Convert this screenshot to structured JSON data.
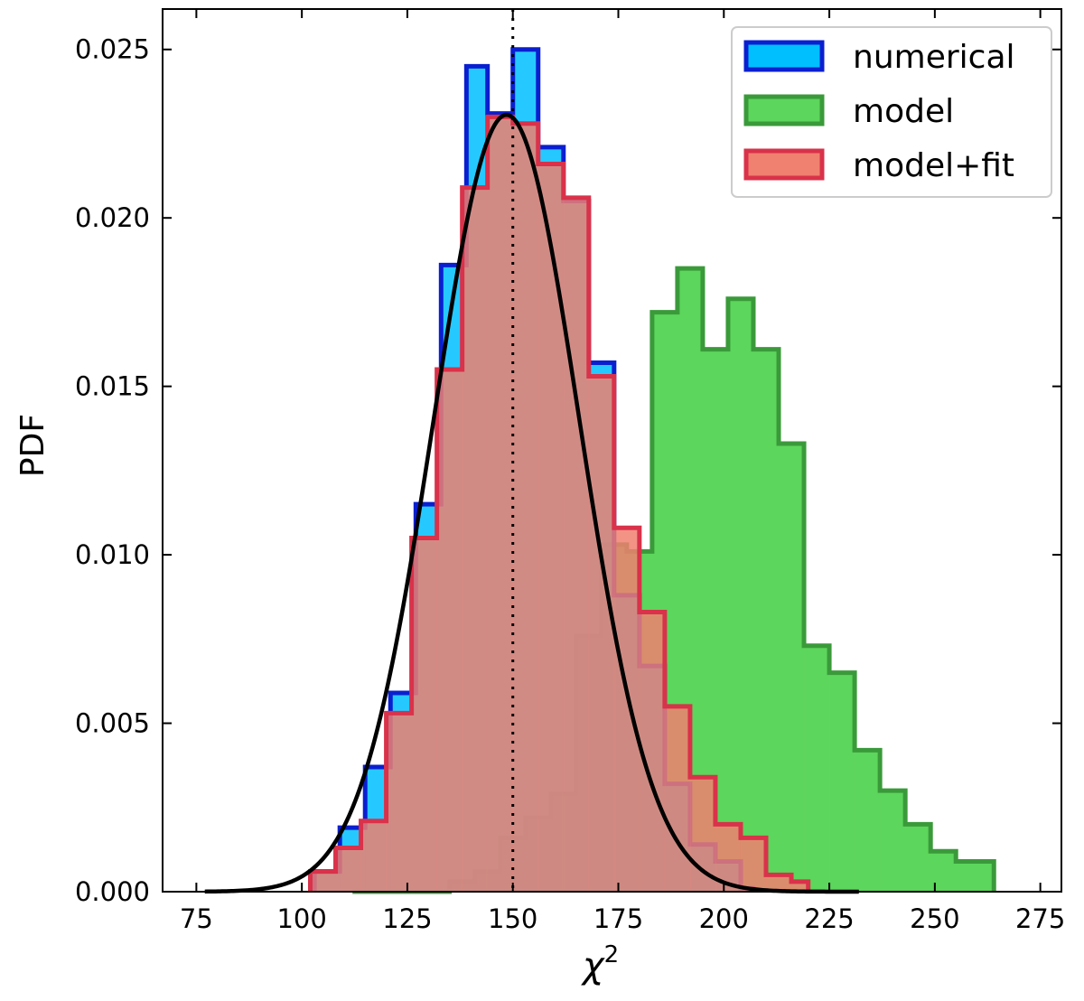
{
  "chart_data": {
    "type": "histogram",
    "xlabel": "χ",
    "xlabel_superscript": "2",
    "ylabel": "PDF",
    "xlim": [
      67,
      280
    ],
    "ylim": [
      0,
      0.0262
    ],
    "x_ticks": [
      75,
      100,
      125,
      150,
      175,
      200,
      225,
      250,
      275
    ],
    "x_tick_labels": [
      "75",
      "100",
      "125",
      "150",
      "175",
      "200",
      "225",
      "250",
      "275"
    ],
    "y_ticks": [
      0,
      0.005,
      0.01,
      0.015,
      0.02,
      0.025
    ],
    "y_tick_labels": [
      "0.000",
      "0.005",
      "0.010",
      "0.015",
      "0.020",
      "0.025"
    ],
    "grid": false,
    "legend_position": "top-right",
    "vline_x": 150,
    "series": [
      {
        "name": "model",
        "fill": "#5cd65c",
        "edge": "#3a9a3a",
        "bins": [
          [
            112,
            118,
            0
          ],
          [
            118,
            124,
            0
          ],
          [
            124,
            130,
            0
          ],
          [
            130,
            135,
            0
          ],
          [
            135,
            141,
            0.0003
          ],
          [
            141,
            147,
            0.0006
          ],
          [
            147,
            153,
            0.0016
          ],
          [
            153,
            159,
            0.0022
          ],
          [
            159,
            165,
            0.0029
          ],
          [
            165,
            171,
            0.0076
          ],
          [
            171,
            177,
            0.0103
          ],
          [
            177,
            183,
            0.0101
          ],
          [
            183,
            189,
            0.0172
          ],
          [
            189,
            195,
            0.0185
          ],
          [
            195,
            201,
            0.0161
          ],
          [
            201,
            207,
            0.0176
          ],
          [
            207,
            213,
            0.0161
          ],
          [
            213,
            219,
            0.0133
          ],
          [
            219,
            225,
            0.0073
          ],
          [
            225,
            231,
            0.0065
          ],
          [
            231,
            237,
            0.0042
          ],
          [
            237,
            243,
            0.003
          ],
          [
            243,
            249,
            0.002
          ],
          [
            249,
            255,
            0.0012
          ],
          [
            255,
            261,
            0.0009
          ],
          [
            261,
            264,
            0.0009
          ]
        ]
      },
      {
        "name": "numerical",
        "fill": "#00bfff",
        "edge": "#0a1fd0",
        "bins": [
          [
            103,
            109,
            0.0006
          ],
          [
            109,
            115,
            0.0019
          ],
          [
            115,
            121,
            0.0037
          ],
          [
            121,
            127,
            0.0059
          ],
          [
            127,
            133,
            0.0115
          ],
          [
            133,
            139,
            0.0186
          ],
          [
            139,
            144,
            0.0245
          ],
          [
            144,
            150,
            0.0231
          ],
          [
            150,
            156,
            0.025
          ],
          [
            156,
            162,
            0.0221
          ],
          [
            162,
            168,
            0.0205
          ],
          [
            168,
            174,
            0.0157
          ],
          [
            174,
            180,
            0.0088
          ],
          [
            180,
            186,
            0.0067
          ],
          [
            186,
            192,
            0.0032
          ],
          [
            192,
            198,
            0.0014
          ],
          [
            198,
            204,
            0.0009
          ],
          [
            204,
            207,
            0.0001
          ]
        ]
      },
      {
        "name": "model+fit",
        "fill": "#f08070",
        "edge": "#d9324a",
        "bins": [
          [
            102,
            108,
            0.0006
          ],
          [
            108,
            114,
            0.0013
          ],
          [
            114,
            120,
            0.0021
          ],
          [
            120,
            126,
            0.0053
          ],
          [
            126,
            132,
            0.0105
          ],
          [
            132,
            138,
            0.0155
          ],
          [
            138,
            144,
            0.0209
          ],
          [
            144,
            150,
            0.023
          ],
          [
            150,
            156,
            0.0228
          ],
          [
            156,
            162,
            0.0216
          ],
          [
            162,
            168,
            0.0206
          ],
          [
            168,
            174,
            0.0153
          ],
          [
            174,
            180,
            0.0108
          ],
          [
            180,
            186,
            0.0083
          ],
          [
            186,
            192,
            0.0055
          ],
          [
            192,
            198,
            0.0034
          ],
          [
            198,
            204,
            0.002
          ],
          [
            204,
            210,
            0.0016
          ],
          [
            210,
            216,
            0.0005
          ],
          [
            216,
            220,
            0.0003
          ]
        ]
      }
    ],
    "fit_curve": {
      "color": "#000000",
      "type": "gaussian",
      "mean": 148.5,
      "sigma": 17.3,
      "x_range": [
        77,
        232
      ],
      "points": 300
    }
  }
}
